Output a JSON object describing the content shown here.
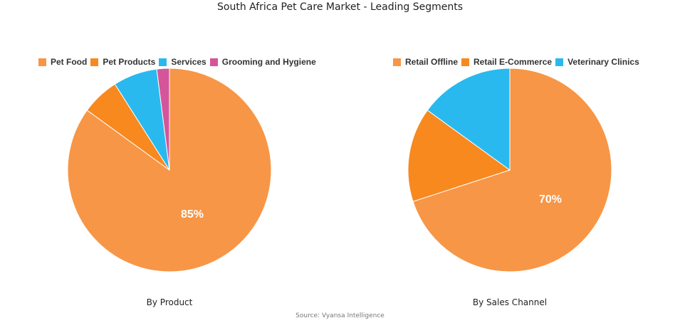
{
  "title": "South Africa Pet Care Market - Leading Segments",
  "source": "Source: Vyansa Intelligence",
  "chart_data": [
    {
      "type": "pie",
      "title": "By Product",
      "categories": [
        "Pet Food",
        "Pet Products",
        "Services",
        "Grooming and Hygiene"
      ],
      "values": [
        85,
        6,
        7,
        2
      ],
      "colors": [
        "#F79646",
        "#F7891F",
        "#29B9EE",
        "#D4559A"
      ],
      "data_label": "85%",
      "legend_position": "top"
    },
    {
      "type": "pie",
      "title": "By Sales Channel",
      "categories": [
        "Retail Offline",
        "Retail E-Commerce",
        "Veterinary Clinics"
      ],
      "values": [
        70,
        15,
        15
      ],
      "colors": [
        "#F79646",
        "#F7891F",
        "#29B9EE"
      ],
      "data_label": "70%",
      "legend_position": "top"
    }
  ]
}
